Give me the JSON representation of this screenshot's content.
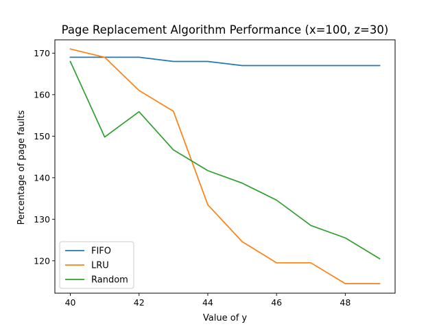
{
  "chart_data": {
    "type": "line",
    "title": "Page Replacement Algorithm Performance (x=100, z=30)",
    "xlabel": "Value of y",
    "ylabel": "Percentage of page faults",
    "x": [
      40,
      41,
      42,
      43,
      44,
      45,
      46,
      47,
      48,
      49
    ],
    "xlim": [
      39.55,
      49.45
    ],
    "ylim": [
      112.2,
      173.2
    ],
    "xticks": [
      40,
      42,
      44,
      46,
      48
    ],
    "yticks": [
      120,
      130,
      140,
      150,
      160,
      170
    ],
    "grid": false,
    "legend": "lower-left",
    "series": [
      {
        "name": "FIFO",
        "color": "#1f77b4",
        "values": [
          169,
          169,
          169,
          168,
          168,
          167,
          167,
          167,
          167,
          167
        ]
      },
      {
        "name": "LRU",
        "color": "#ff7f0e",
        "values": [
          171,
          169,
          161,
          156,
          133.5,
          124.6,
          119.5,
          119.5,
          114.5,
          114.5
        ]
      },
      {
        "name": "Random",
        "color": "#2ca02c",
        "values": [
          168,
          149.8,
          155.9,
          146.7,
          141.7,
          138.7,
          134.6,
          128.5,
          125.5,
          120.5
        ]
      }
    ]
  }
}
